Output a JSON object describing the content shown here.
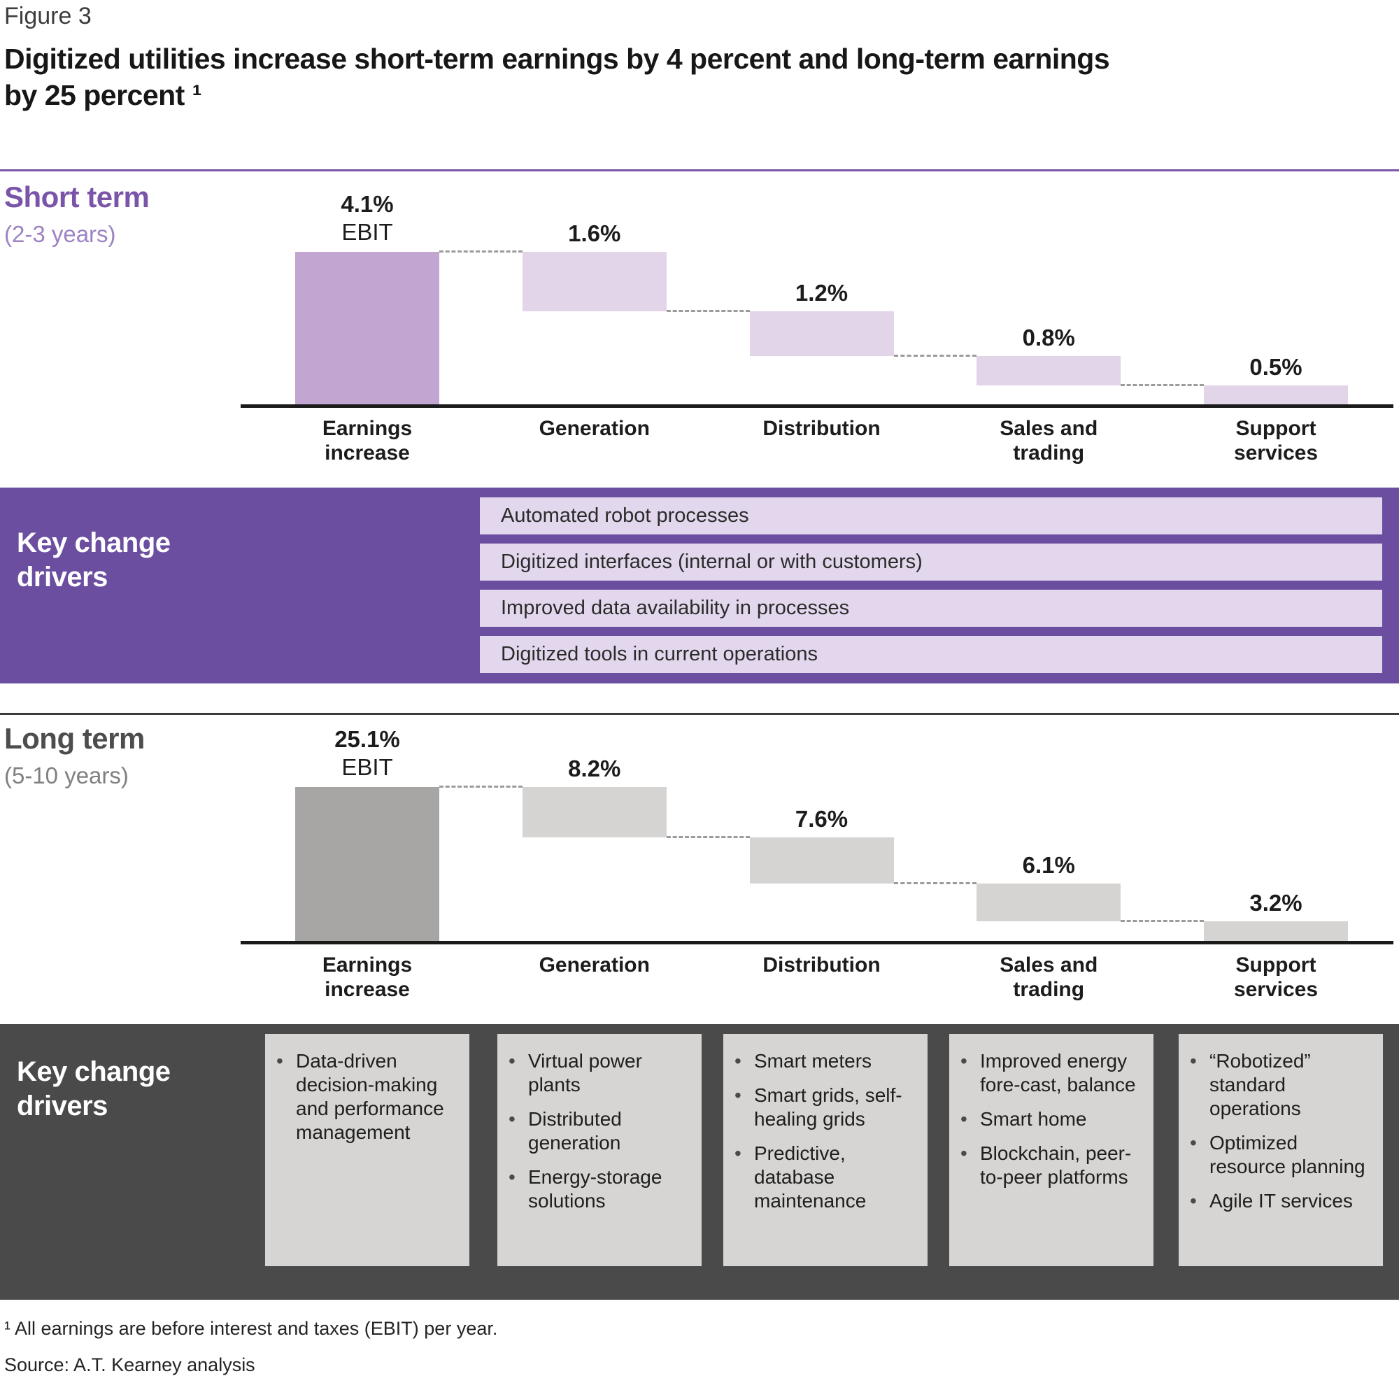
{
  "header": {
    "figure_label": "Figure 3",
    "title_lines": [
      "Digitized utilities increase short-term earnings by 4 percent and long-term earnings",
      "by 25 percent ¹"
    ]
  },
  "colors": {
    "purple_accent": "#7a54a8",
    "purple_light_text": "#9d82c4",
    "purple_band": "#6b4e9f",
    "purple_row_bg": "#e3d7ed",
    "short_total_bar": "#c2a6d1",
    "short_component_bar": "#e2d4e9",
    "gray_heading": "#4d4d4d",
    "gray_subheading": "#808080",
    "long_total_bar": "#a7a6a4",
    "long_component_bar": "#d5d4d2",
    "dark_band": "#4a4a4a",
    "card_bg": "#d6d5d3",
    "divider_dark": "#3c3c3c",
    "axis": "#1a1a1a",
    "dash": "#9b9b9b",
    "text_dark": "#1c1c1c"
  },
  "chart_data": [
    {
      "type": "bar",
      "subtype": "waterfall",
      "title": "Short term",
      "subtitle": "(2-3 years)",
      "unit": "%",
      "total_note": "EBIT",
      "categories": [
        "Earnings increase",
        "Generation",
        "Distribution",
        "Sales and trading",
        "Support services"
      ],
      "values": [
        4.1,
        1.6,
        1.2,
        0.8,
        0.5
      ],
      "value_labels": [
        "4.1%",
        "1.6%",
        "1.2%",
        "0.8%",
        "0.5%"
      ],
      "ylim": [
        0,
        4.1
      ],
      "grid": false,
      "note": "First bar is the total earnings increase; following bars are component contributions stepping down to zero, linked by dashed connectors.",
      "colors": {
        "total_bar": "#c2a6d1",
        "component_bar": "#e2d4e9"
      }
    },
    {
      "type": "bar",
      "subtype": "waterfall",
      "title": "Long term",
      "subtitle": "(5-10 years)",
      "unit": "%",
      "total_note": "EBIT",
      "categories": [
        "Earnings increase",
        "Generation",
        "Distribution",
        "Sales and trading",
        "Support services"
      ],
      "values": [
        25.1,
        8.2,
        7.6,
        6.1,
        3.2
      ],
      "value_labels": [
        "25.1%",
        "8.2%",
        "7.6%",
        "6.1%",
        "3.2%"
      ],
      "ylim": [
        0,
        25.1
      ],
      "grid": false,
      "note": "First bar is the total earnings increase; following bars are component contributions stepping down to zero, linked by dashed connectors.",
      "colors": {
        "total_bar": "#a7a6a4",
        "component_bar": "#d5d4d2"
      }
    }
  ],
  "short_term_drivers": {
    "heading": "Key change drivers",
    "rows": [
      "Automated robot processes",
      "Digitized interfaces (internal or with customers)",
      "Improved data availability in processes",
      "Digitized tools in current operations"
    ]
  },
  "long_term_drivers": {
    "heading": "Key change drivers",
    "columns": [
      [
        "Data-driven decision-making and performance management"
      ],
      [
        "Virtual power plants",
        "Distributed generation",
        "Energy-storage solutions"
      ],
      [
        "Smart meters",
        "Smart grids, self-healing grids",
        "Predictive, database maintenance"
      ],
      [
        "Improved energy fore-cast, balance",
        "Smart home",
        "Blockchain, peer-to-peer platforms"
      ],
      [
        "“Robotized” standard operations",
        "Optimized resource planning",
        "Agile IT services"
      ]
    ]
  },
  "footnote": {
    "text": "¹ All earnings are before interest and taxes (EBIT) per year."
  },
  "source": {
    "text": "Source: A.T. Kearney analysis"
  }
}
